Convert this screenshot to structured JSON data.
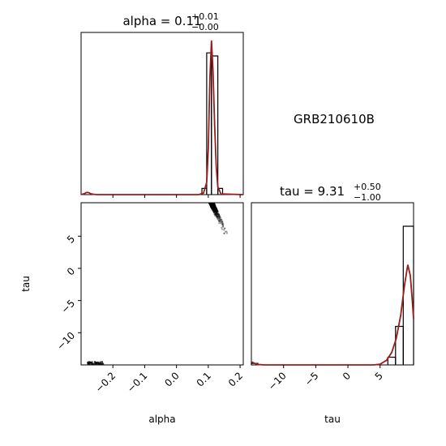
{
  "figure_label": "GRB210610B",
  "chart_data": [
    {
      "panel": "alpha_marginal",
      "type": "histogram",
      "title_prefix": "alpha = 0.11",
      "title_sup": "+0.01",
      "title_sub": "−0.00",
      "xlim": [
        -0.3,
        0.21
      ],
      "bins": [
        {
          "x0": 0.08,
          "x1": 0.095,
          "count": 0.04
        },
        {
          "x0": 0.095,
          "x1": 0.11,
          "count": 0.92
        },
        {
          "x0": 0.11,
          "x1": 0.13,
          "count": 0.9
        },
        {
          "x0": 0.13,
          "x1": 0.145,
          "count": 0.04
        }
      ],
      "kde": [
        [
          -0.3,
          0.0
        ],
        [
          -0.29,
          0.006
        ],
        [
          -0.285,
          0.012
        ],
        [
          -0.28,
          0.014
        ],
        [
          -0.275,
          0.012
        ],
        [
          -0.27,
          0.006
        ],
        [
          -0.26,
          0.002
        ],
        [
          -0.25,
          0.0
        ],
        [
          0.07,
          0.0
        ],
        [
          0.085,
          0.01
        ],
        [
          0.095,
          0.08
        ],
        [
          0.1,
          0.3
        ],
        [
          0.105,
          0.75
        ],
        [
          0.11,
          1.0
        ],
        [
          0.115,
          0.8
        ],
        [
          0.12,
          0.45
        ],
        [
          0.125,
          0.18
        ],
        [
          0.13,
          0.05
        ],
        [
          0.14,
          0.005
        ],
        [
          0.21,
          0.0
        ]
      ]
    },
    {
      "panel": "tau_marginal",
      "type": "histogram",
      "title_prefix": "tau = 9.31",
      "title_sup": "+0.50",
      "title_sub": "−1.00",
      "xlim": [
        -15,
        10.2
      ],
      "xticks": [
        -10,
        -5,
        0,
        5
      ],
      "bins": [
        {
          "x0": -15,
          "x1": -14.0,
          "count": 0.01
        },
        {
          "x0": 6.2,
          "x1": 7.4,
          "count": 0.05
        },
        {
          "x0": 7.4,
          "x1": 8.6,
          "count": 0.25
        },
        {
          "x0": 8.6,
          "x1": 10.2,
          "count": 0.9
        }
      ],
      "kde": [
        [
          -15,
          0.02
        ],
        [
          -14.5,
          0.01
        ],
        [
          -14,
          0.003
        ],
        [
          -13,
          0.0
        ],
        [
          4,
          0.0
        ],
        [
          5,
          0.005
        ],
        [
          6,
          0.03
        ],
        [
          6.8,
          0.08
        ],
        [
          7.5,
          0.17
        ],
        [
          8.2,
          0.32
        ],
        [
          8.8,
          0.52
        ],
        [
          9.3,
          0.65
        ],
        [
          9.7,
          0.58
        ],
        [
          10.0,
          0.42
        ],
        [
          10.2,
          0.3
        ]
      ]
    },
    {
      "panel": "alpha_tau_joint",
      "type": "scatter",
      "xlabel": "alpha",
      "ylabel": "tau",
      "xlim": [
        -0.3,
        0.21
      ],
      "ylim": [
        -15,
        10.2
      ],
      "xticks": [
        -0.2,
        -0.1,
        0.0,
        0.1,
        0.2
      ],
      "yticks": [
        -10,
        -5,
        0,
        5
      ],
      "clusters": [
        {
          "x_range": [
            0.1,
            0.165
          ],
          "y_range": [
            4.8,
            10.2
          ],
          "correlation": "negative"
        },
        {
          "x_range": [
            -0.28,
            -0.23
          ],
          "y_range": [
            -15,
            -14.5
          ],
          "correlation": "none"
        }
      ]
    }
  ],
  "x_axis_label_tau": "tau"
}
